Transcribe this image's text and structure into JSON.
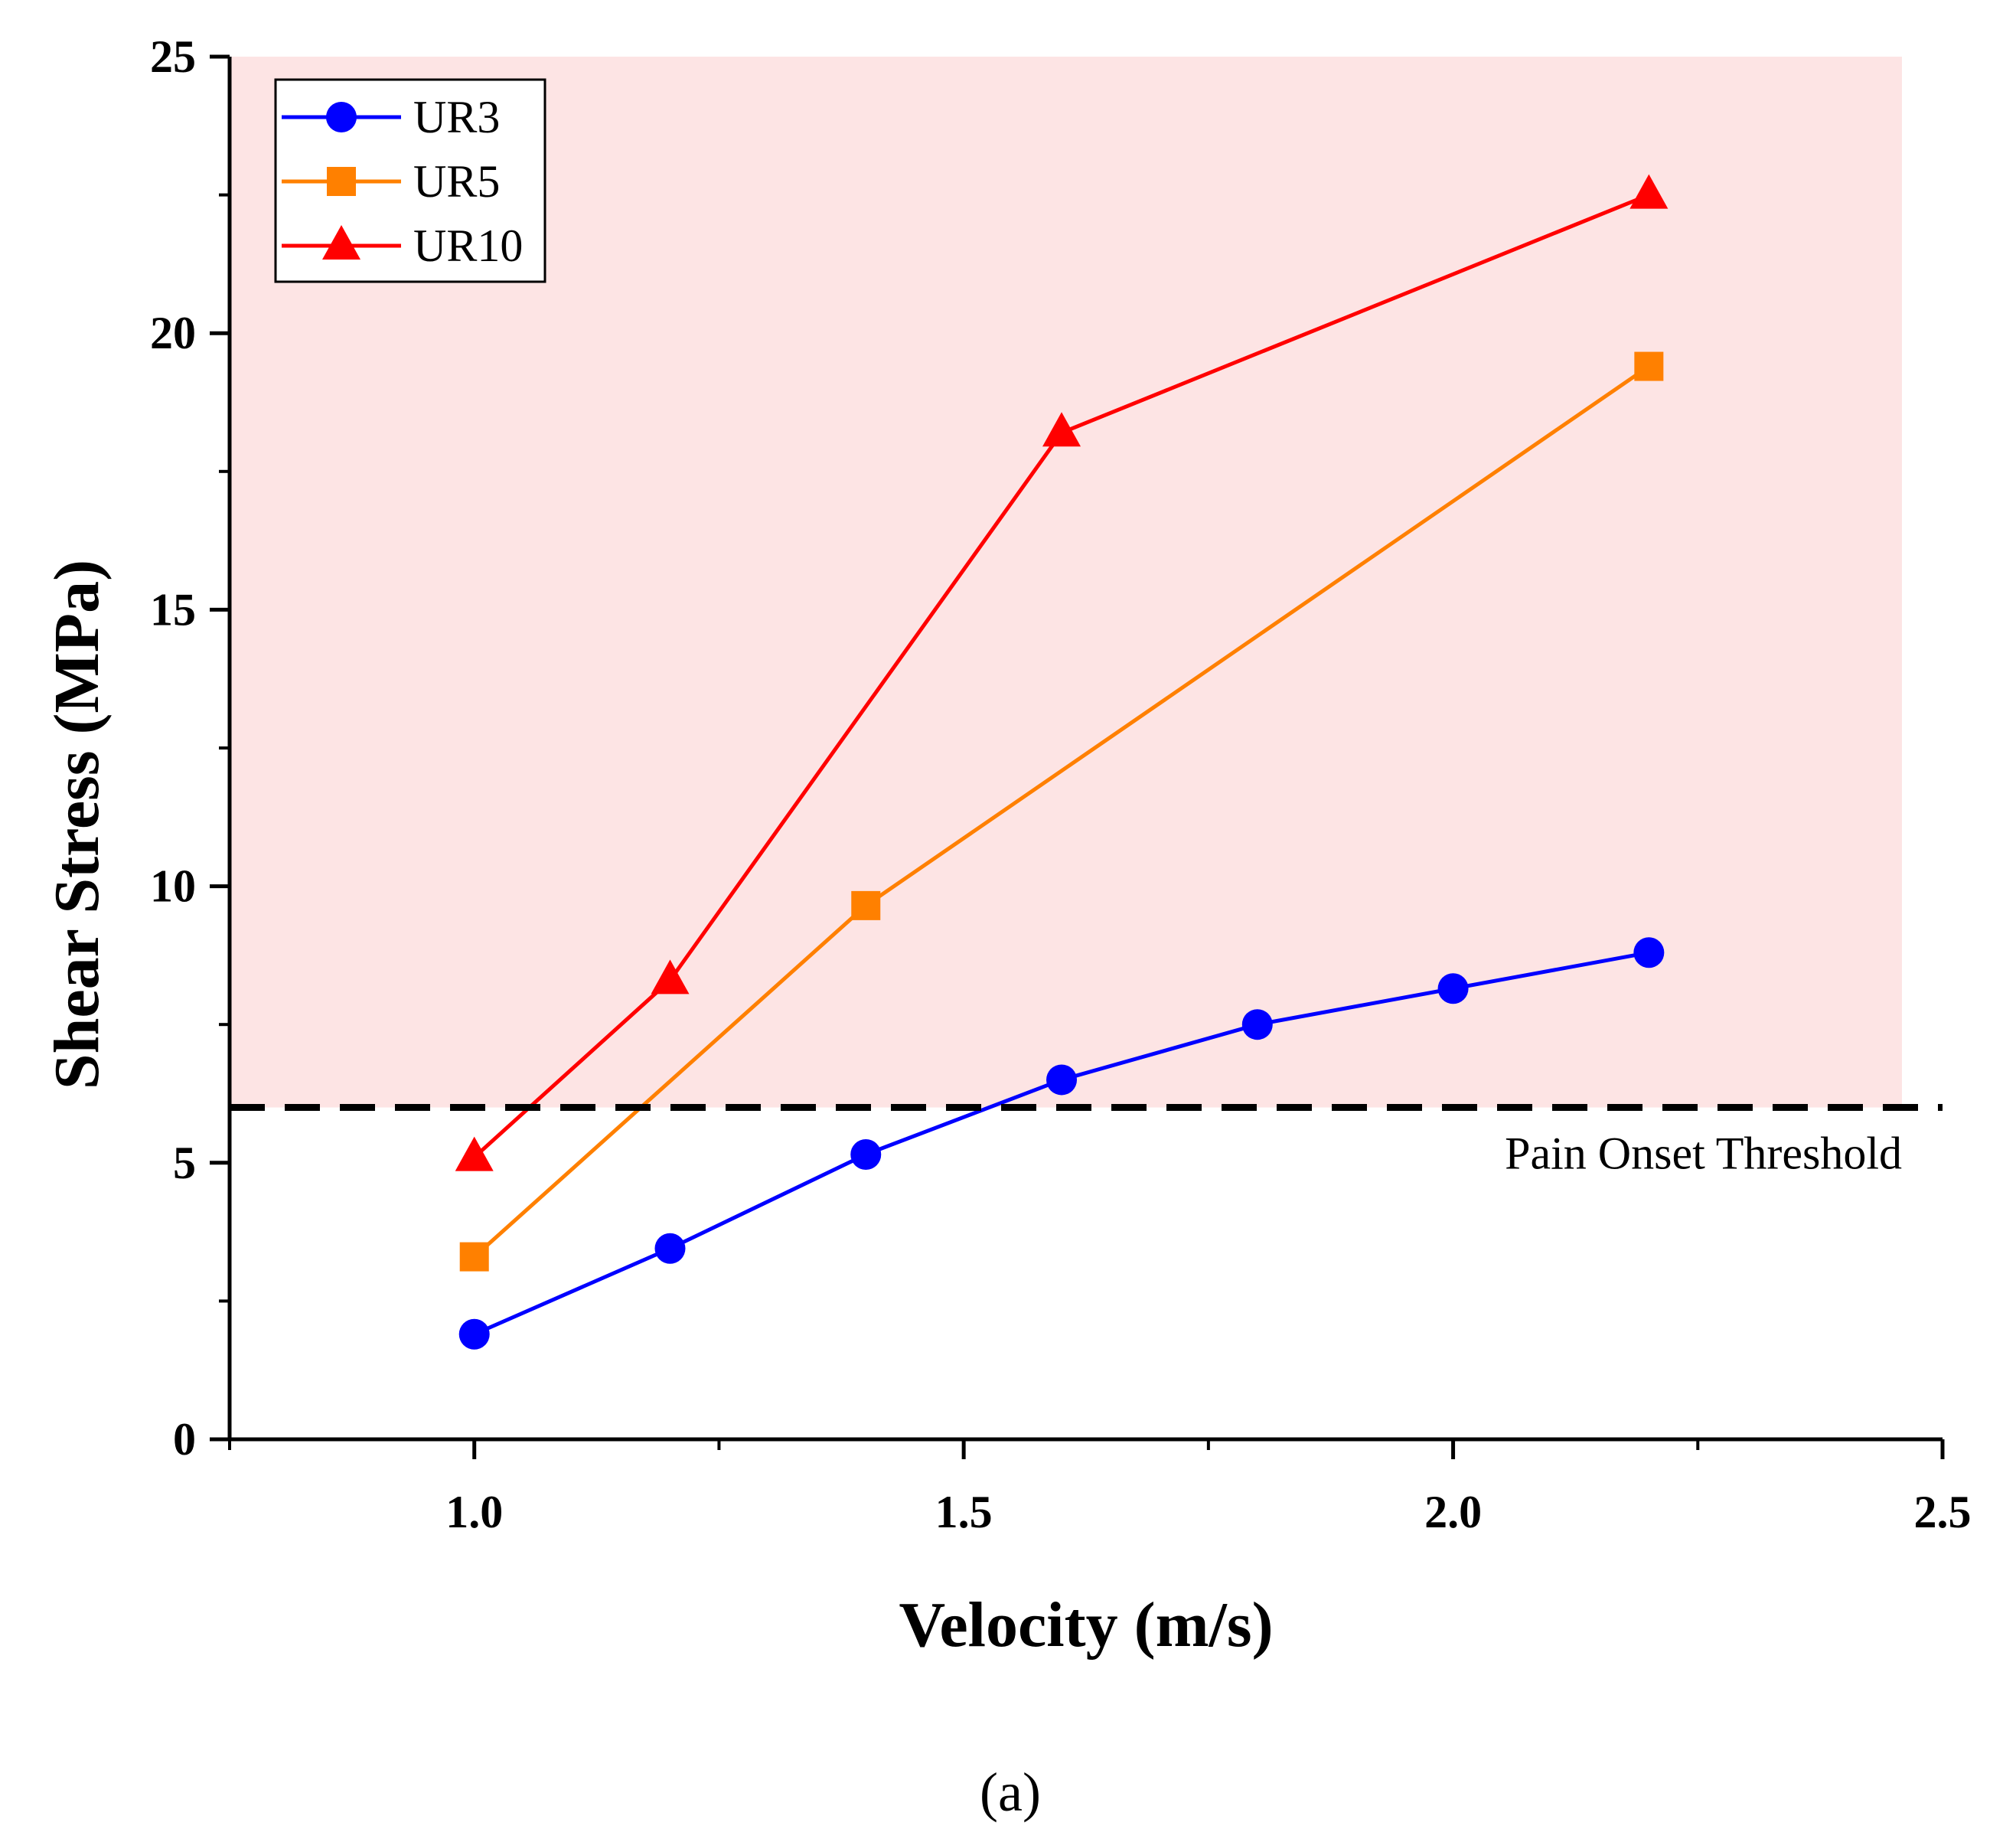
{
  "chart_data": {
    "type": "line",
    "title": "",
    "xlabel": "Velocity (m/s)",
    "ylabel": "Shear Stress (MPa)",
    "xlim": [
      0.75,
      2.5
    ],
    "ylim": [
      0,
      25
    ],
    "x_ticks": [
      1.0,
      1.5,
      2.0,
      2.5
    ],
    "x_tick_labels": [
      "1.0",
      "1.5",
      "2.0",
      "2.5"
    ],
    "y_ticks": [
      0,
      5,
      10,
      15,
      20,
      25
    ],
    "y_tick_labels": [
      "0",
      "5",
      "10",
      "15",
      "20",
      "25"
    ],
    "grid": false,
    "legend_position": "top-left",
    "series": [
      {
        "name": "UR3",
        "color": "#0000ff",
        "marker": "circle",
        "x": [
          1.0,
          1.2,
          1.4,
          1.6,
          1.8,
          2.0,
          2.2
        ],
        "values": [
          1.9,
          3.45,
          5.15,
          6.5,
          7.5,
          8.15,
          8.8
        ]
      },
      {
        "name": "UR5",
        "color": "#ff8000",
        "marker": "square",
        "x": [
          1.0,
          1.4,
          2.2
        ],
        "values": [
          3.3,
          9.65,
          19.4
        ]
      },
      {
        "name": "UR10",
        "color": "#ff0000",
        "marker": "triangle",
        "x": [
          1.0,
          1.2,
          1.6,
          2.2
        ],
        "values": [
          5.1,
          8.3,
          18.2,
          22.5
        ]
      }
    ],
    "threshold": {
      "value": 6,
      "label": "Pain Onset Threshold",
      "shade_color": "#fde4e4"
    },
    "caption": "(a)"
  }
}
